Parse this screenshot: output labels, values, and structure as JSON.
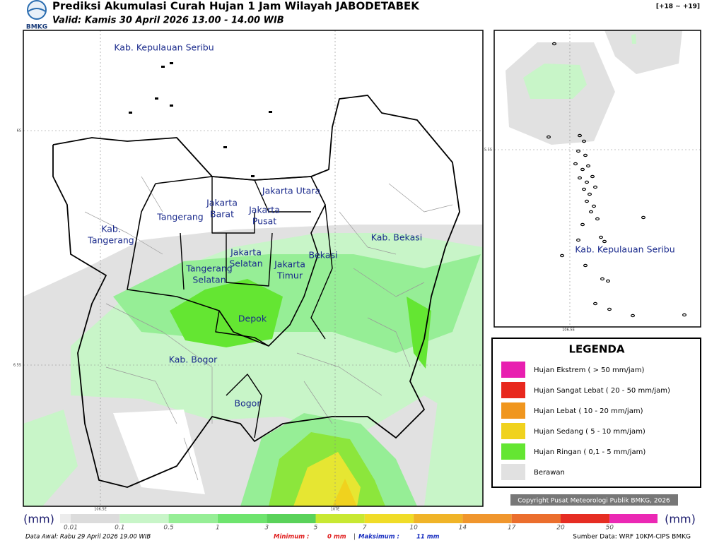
{
  "header": {
    "title": "Prediksi Akumulasi Curah Hujan 1 Jam Wilayah JABODETABEK",
    "valid": "Valid: Kamis 30 April 2026 13.00 - 14.00 WIB",
    "range": "[+18 ~ +19]",
    "logo": "BMKG"
  },
  "map": {
    "labels": [
      {
        "lines": [
          "Kab. Kepulauan Seribu"
        ]
      },
      {
        "lines": [
          "Jakarta Utara"
        ]
      },
      {
        "lines": [
          "Jakarta",
          "Barat"
        ]
      },
      {
        "lines": [
          "Jakarta",
          "Pusat"
        ]
      },
      {
        "lines": [
          "Tangerang"
        ]
      },
      {
        "lines": [
          "Kab.",
          "Tangerang"
        ]
      },
      {
        "lines": [
          "Jakarta",
          "Selatan"
        ]
      },
      {
        "lines": [
          "Jakarta",
          "Timur"
        ]
      },
      {
        "lines": [
          "Bekasi"
        ]
      },
      {
        "lines": [
          "Kab. Bekasi"
        ]
      },
      {
        "lines": [
          "Tangerang",
          "Selatan"
        ]
      },
      {
        "lines": [
          "Depok"
        ]
      },
      {
        "lines": [
          "Kab. Bogor"
        ]
      },
      {
        "lines": [
          "Bogor"
        ]
      }
    ],
    "axis_labels": [
      "6S",
      "6.5S",
      "106.5E",
      "107E"
    ]
  },
  "inset": {
    "label": "Kab. Kepulauan Seribu",
    "axis_labels": [
      "5.5S",
      "106.5E"
    ]
  },
  "legend": {
    "title": "LEGENDA",
    "items": [
      {
        "label": "Hujan Ekstrem ( > 50 mm/jam)",
        "color": "#e81fb0"
      },
      {
        "label": "Hujan Sangat Lebat ( 20 - 50 mm/jam)",
        "color": "#e8281e"
      },
      {
        "label": "Hujan Lebat ( 10 - 20 mm/jam)",
        "color": "#f0961e"
      },
      {
        "label": "Hujan Sedang ( 5 - 10 mm/jam)",
        "color": "#f0d21e"
      },
      {
        "label": "Hujan Ringan ( 0,1 - 5 mm/jam)",
        "color": "#64e632"
      },
      {
        "label": "Berawan",
        "color": "#e1e1e1"
      }
    ]
  },
  "copyright": "Copyright Pusat Meteorologi Publik BMKG, 2026",
  "colorbar": {
    "unit": "(mm)",
    "ticks": [
      0.01,
      0.1,
      0.5,
      1,
      3,
      5,
      7,
      10,
      14,
      17,
      20,
      50
    ],
    "colors": [
      "#dcdcdc",
      "#c8f5c8",
      "#96ee96",
      "#6ee46e",
      "#5ad25a",
      "#c8e832",
      "#f0dc28",
      "#f0b428",
      "#f0962d",
      "#eb6e2d",
      "#e62d23",
      "#eb28b4"
    ]
  },
  "footer": {
    "initial": "Data Awal: Rabu 29 April 2026 19.00 WIB",
    "min_label": "Minimum :",
    "min": "0 mm",
    "separator": "|",
    "max_label": "Maksimum :",
    "max": "11 mm",
    "source": "Sumber Data: WRF 10KM-CIPS BMKG"
  }
}
